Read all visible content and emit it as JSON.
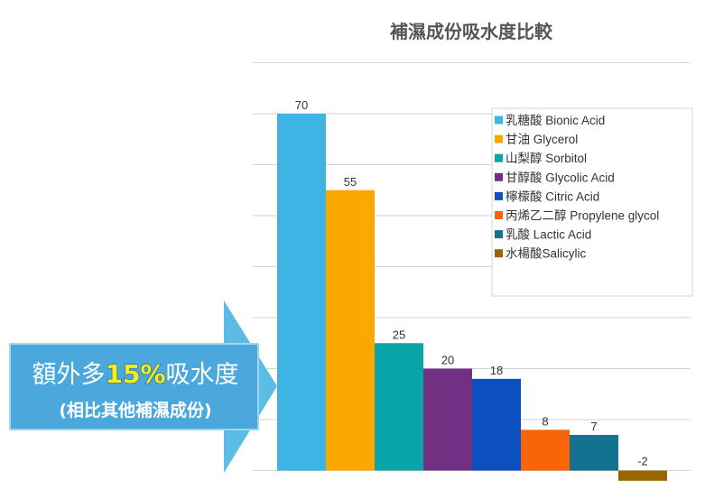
{
  "chart_data": {
    "type": "bar",
    "title": "補濕成份吸水度比較",
    "categories": [
      "乳糖酸 Bionic Acid",
      "甘油 Glycerol",
      "山梨醇 Sorbitol",
      "甘醇酸 Glycolic Acid",
      "檸檬酸 Citric Acid",
      "丙烯乙二醇 Propylene glycol",
      "乳酸 Lactic Acid",
      "水楊酸Salicylic"
    ],
    "values": [
      70,
      55,
      25,
      20,
      18,
      8,
      7,
      -2
    ],
    "value_labels": [
      "70",
      "55",
      "25",
      "20",
      "18",
      "8",
      "7",
      "-2"
    ],
    "colors": [
      "#3db4e4",
      "#fca800",
      "#0aa5a8",
      "#723082",
      "#0c4fc0",
      "#fa6408",
      "#137291",
      "#9a6400"
    ],
    "ylim": [
      -2,
      80
    ],
    "grid": true,
    "legend_position": "right",
    "xlabel": "",
    "ylabel": ""
  },
  "callout": {
    "line1_prefix": "額外多",
    "line1_highlight": "15%",
    "line1_suffix": "吸水度",
    "line2": "(相比其他補濕成份)",
    "arrow_color": "#5bbde6",
    "box_color": "#4ba8dc"
  }
}
